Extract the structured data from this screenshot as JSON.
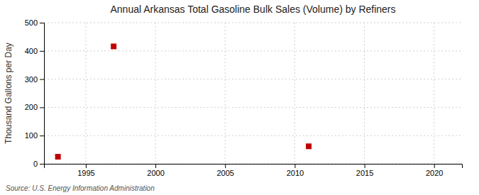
{
  "chart_data": {
    "type": "scatter",
    "title": "Annual Arkansas Total Gasoline Bulk Sales (Volume) by Refiners",
    "ylabel": "Thousand Gallons per Day",
    "source": "Source: U.S. Energy Information Administration",
    "x": [
      1993,
      1997,
      2011
    ],
    "values": [
      25,
      416,
      62
    ],
    "color": "#c00000",
    "marker": "square",
    "xlim": [
      1992,
      2022
    ],
    "ylim": [
      0,
      500
    ],
    "xticks": [
      1995,
      2000,
      2005,
      2010,
      2015,
      2020
    ],
    "yticks": [
      0,
      100,
      200,
      300,
      400,
      500
    ],
    "grid": true
  }
}
